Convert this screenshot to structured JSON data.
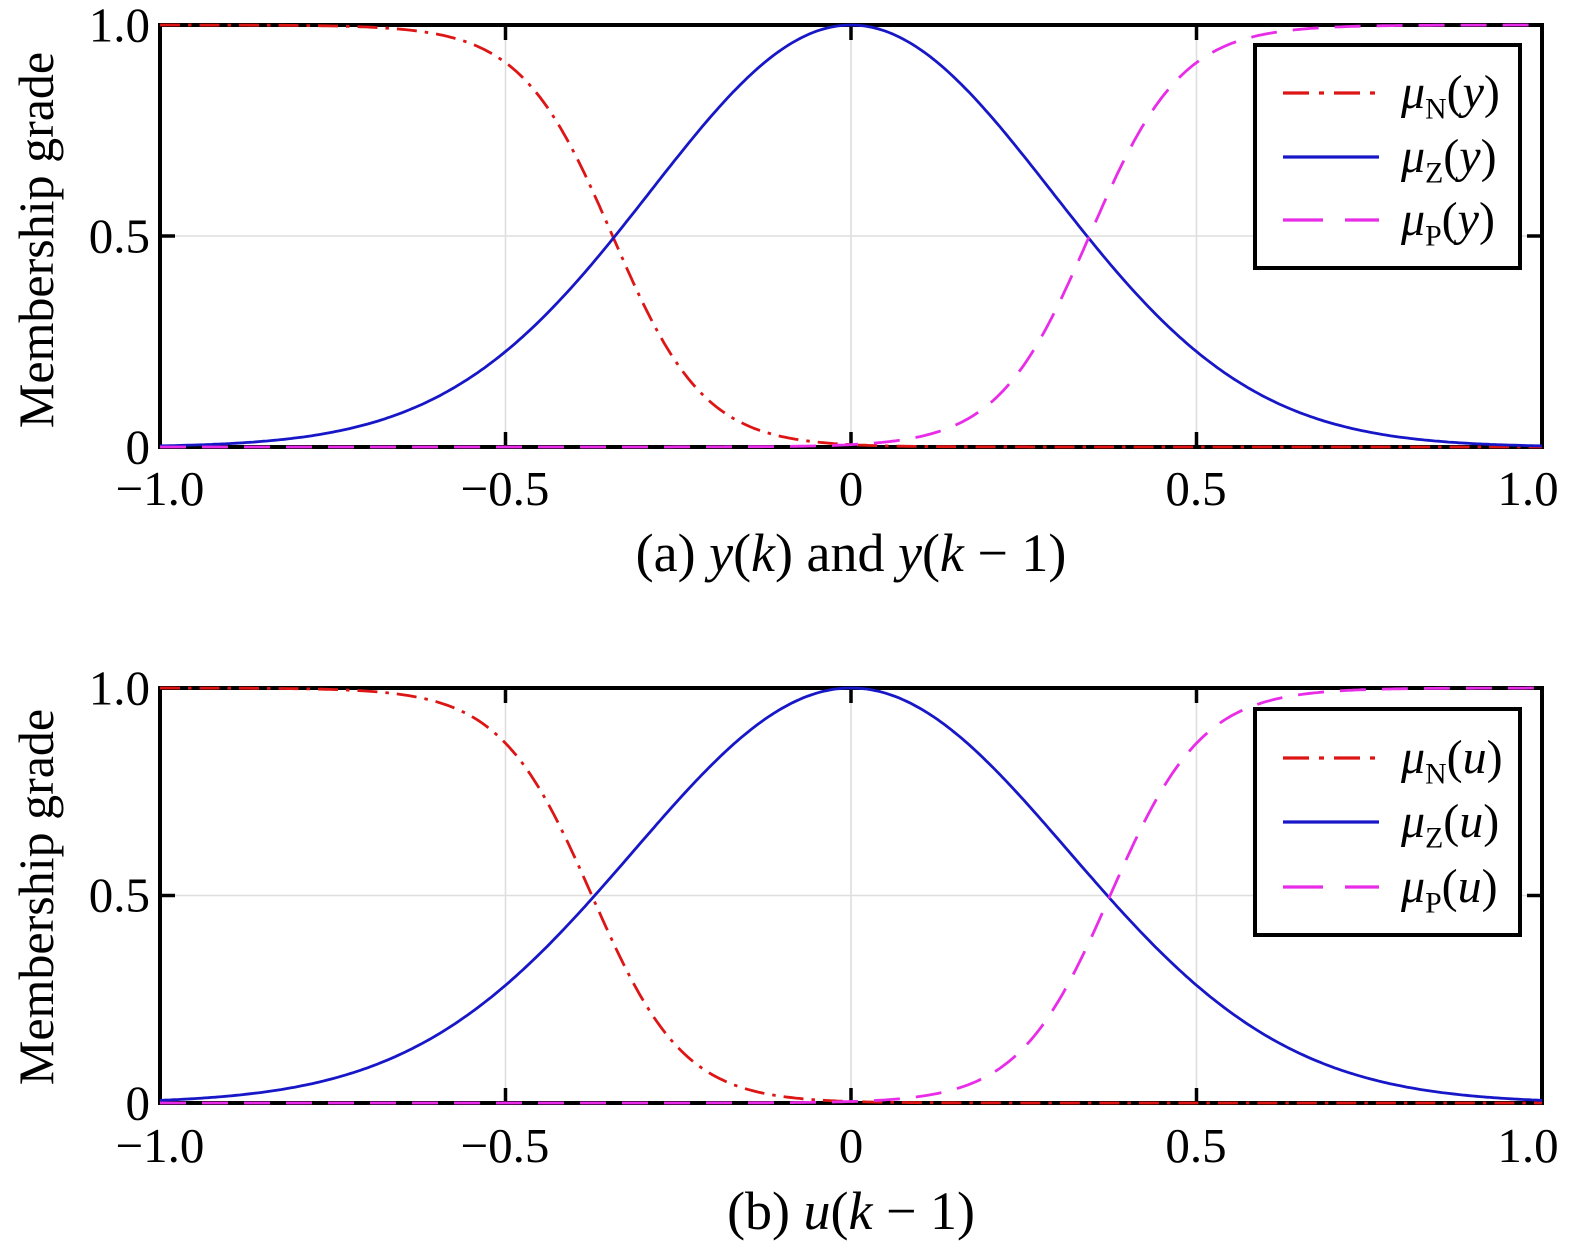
{
  "figure": {
    "background": "#ffffff",
    "title": ""
  },
  "colors": {
    "N": "#dd1515",
    "Z": "#1717c8",
    "P": "#e82ce8",
    "grid": "#dedede",
    "frame": "#000000"
  },
  "chart_data": [
    {
      "type": "line",
      "id": "a",
      "caption": "(a) *y*(*k*) and *y*(*k* − 1)",
      "ylabel": "Membership grade",
      "xlim": [
        -1,
        1
      ],
      "ylim": [
        0,
        1
      ],
      "xticks": [
        -1.0,
        -0.5,
        0,
        0.5,
        1.0
      ],
      "xtick_labels": [
        "−1.0",
        "−0.5",
        "0",
        "0.5",
        "1.0"
      ],
      "yticks": [
        0,
        0.5,
        1.0
      ],
      "ytick_labels": [
        "0",
        "0.5",
        "1.0"
      ],
      "grid_x": [
        -0.5,
        0,
        0.5
      ],
      "grid_y": [
        0.5
      ],
      "grid": true,
      "legend_position": "upper right",
      "legend": [
        "*μ*_N_(*y*)",
        "*μ*_Z_(*y*)",
        "*μ*_P_(*y*)"
      ],
      "series": [
        {
          "name": "μN(y)",
          "role": "N",
          "style": "dashdot",
          "model": "sigmoid-down",
          "params": {
            "center": -0.345,
            "slope": 15
          },
          "sample_x": [
            -1,
            -0.75,
            -0.5,
            -0.25,
            0,
            0.25,
            0.5,
            0.75,
            1
          ],
          "sample_y": [
            1.0,
            0.9977,
            0.9109,
            0.1938,
            0.0056,
            0.0001,
            0.0,
            0.0,
            0.0
          ]
        },
        {
          "name": "μZ(y)",
          "role": "Z",
          "style": "solid",
          "model": "gaussian",
          "params": {
            "mean": 0,
            "sigma": 0.29
          },
          "sample_x": [
            -1,
            -0.75,
            -0.5,
            -0.25,
            0,
            0.25,
            0.5,
            0.75,
            1
          ],
          "sample_y": [
            0.0026,
            0.0353,
            0.2263,
            0.6896,
            1.0,
            0.6896,
            0.2263,
            0.0353,
            0.0026
          ]
        },
        {
          "name": "μP(y)",
          "role": "P",
          "style": "dashed",
          "model": "sigmoid-up",
          "params": {
            "center": 0.345,
            "slope": 15
          },
          "sample_x": [
            -1,
            -0.75,
            -0.5,
            -0.25,
            0,
            0.25,
            0.5,
            0.75,
            1
          ],
          "sample_y": [
            0.0,
            0.0,
            0.0,
            0.0001,
            0.0056,
            0.1938,
            0.9109,
            0.9977,
            1.0
          ]
        }
      ]
    },
    {
      "type": "line",
      "id": "b",
      "caption": "(b) *u*(*k* − 1)",
      "ylabel": "Membership grade",
      "xlim": [
        -1,
        1
      ],
      "ylim": [
        0,
        1
      ],
      "xticks": [
        -1.0,
        -0.5,
        0,
        0.5,
        1.0
      ],
      "xtick_labels": [
        "−1.0",
        "−0.5",
        "0",
        "0.5",
        "1.0"
      ],
      "yticks": [
        0,
        0.5,
        1.0
      ],
      "ytick_labels": [
        "0",
        "0.5",
        "1.0"
      ],
      "grid_x": [
        -0.5,
        0,
        0.5
      ],
      "grid_y": [
        0.5
      ],
      "grid": true,
      "legend_position": "upper right",
      "legend": [
        "*μ*_N_(*u*)",
        "*μ*_Z_(*u*)",
        "*μ*_P_(*u*)"
      ],
      "series": [
        {
          "name": "μN(u)",
          "role": "N",
          "style": "dashdot",
          "model": "sigmoid-down",
          "params": {
            "center": -0.375,
            "slope": 15
          },
          "sample_x": [
            -1,
            -0.75,
            -0.5,
            -0.25,
            0,
            0.25,
            0.5,
            0.75,
            1
          ],
          "sample_y": [
            0.9999,
            0.9964,
            0.867,
            0.133,
            0.0036,
            0.0001,
            0.0,
            0.0,
            0.0
          ]
        },
        {
          "name": "μZ(u)",
          "role": "Z",
          "style": "solid",
          "model": "gaussian",
          "params": {
            "mean": 0,
            "sigma": 0.315
          },
          "sample_x": [
            -1,
            -0.75,
            -0.5,
            -0.25,
            0,
            0.25,
            0.5,
            0.75,
            1
          ],
          "sample_y": [
            0.0065,
            0.0588,
            0.2837,
            0.7298,
            1.0,
            0.7298,
            0.2837,
            0.0588,
            0.0065
          ]
        },
        {
          "name": "μP(u)",
          "role": "P",
          "style": "dashed",
          "model": "sigmoid-up",
          "params": {
            "center": 0.375,
            "slope": 15
          },
          "sample_x": [
            -1,
            -0.75,
            -0.5,
            -0.25,
            0,
            0.25,
            0.5,
            0.75,
            1
          ],
          "sample_y": [
            0.0,
            0.0,
            0.0,
            0.0001,
            0.0036,
            0.133,
            0.867,
            0.9964,
            0.9999
          ]
        }
      ]
    }
  ]
}
